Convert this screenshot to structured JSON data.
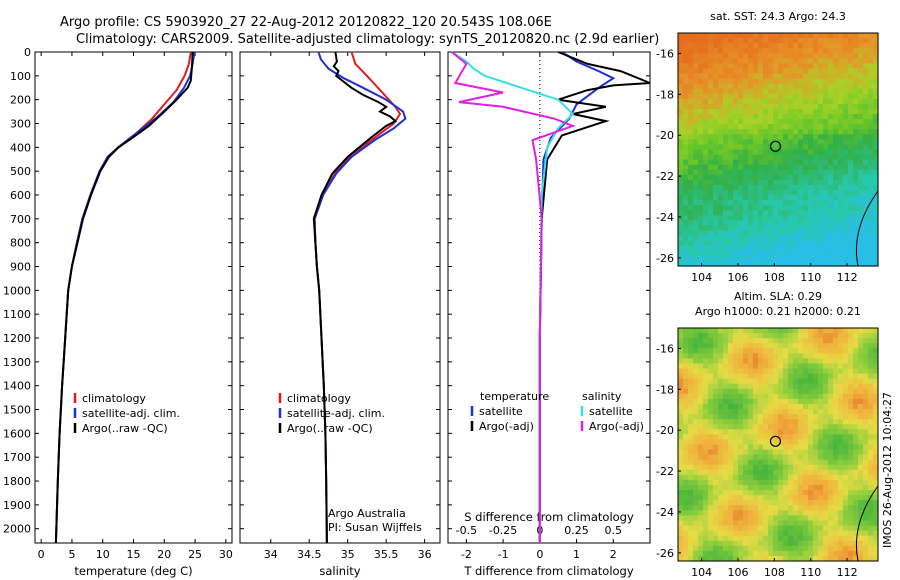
{
  "header": {
    "line1": "Argo profile: CS 5903920_27 22-Aug-2012 20120822_120 20.543S 108.06E",
    "line2": "Climatology: CARS2009. Satellite-adjusted climatology: synTS_20120820.nc (2.9d earlier)"
  },
  "colors": {
    "clim": "#e31a1c",
    "sat": "#1f2fd6",
    "argo": "#000000",
    "sat_s": "#33e0e8",
    "argo_s": "#e020e0"
  },
  "chart_data": [
    {
      "type": "line",
      "name": "temperature-profile",
      "xlabel": "temperature (deg C)",
      "ylim": [
        0,
        2060
      ],
      "xlim": [
        -1,
        31
      ],
      "xticks": [
        0,
        5,
        10,
        15,
        20,
        25,
        30
      ],
      "yticks": [
        0,
        100,
        200,
        300,
        400,
        500,
        600,
        700,
        800,
        900,
        1000,
        1100,
        1200,
        1300,
        1400,
        1500,
        1600,
        1700,
        1800,
        1900,
        2000
      ],
      "legend": {
        "position": "lower-center",
        "entries": [
          "climatology",
          "satellite-adj. clim.",
          "Argo(..raw -QC)"
        ]
      },
      "series": [
        {
          "name": "climatology",
          "color_key": "clim",
          "points": [
            [
              24.3,
              0
            ],
            [
              24,
              50
            ],
            [
              23.3,
              100
            ],
            [
              22,
              160
            ],
            [
              20,
              220
            ],
            [
              18,
              280
            ],
            [
              15.5,
              340
            ],
            [
              12.5,
              400
            ],
            [
              10.8,
              440
            ],
            [
              9.5,
              500
            ],
            [
              8,
              600
            ],
            [
              6.7,
              700
            ],
            [
              5.8,
              800
            ],
            [
              5,
              900
            ],
            [
              4.4,
              1000
            ],
            [
              3.9,
              1200
            ],
            [
              3.4,
              1400
            ],
            [
              3,
              1600
            ],
            [
              2.7,
              1800
            ],
            [
              2.4,
              2060
            ]
          ]
        },
        {
          "name": "satellite-adj. clim.",
          "color_key": "sat",
          "points": [
            [
              24.9,
              0
            ],
            [
              24.6,
              50
            ],
            [
              24.2,
              100
            ],
            [
              23.2,
              150
            ],
            [
              21.5,
              210
            ],
            [
              19,
              270
            ],
            [
              16,
              330
            ],
            [
              13,
              390
            ],
            [
              10.8,
              440
            ],
            [
              9.5,
              500
            ],
            [
              8,
              600
            ],
            [
              6.7,
              700
            ],
            [
              5.8,
              800
            ],
            [
              5,
              900
            ],
            [
              4.4,
              1000
            ],
            [
              3.9,
              1200
            ],
            [
              3.4,
              1400
            ],
            [
              3,
              1600
            ],
            [
              2.7,
              1800
            ],
            [
              2.4,
              2060
            ]
          ]
        },
        {
          "name": "Argo(..raw -QC)",
          "color_key": "argo",
          "points": [
            [
              24.6,
              0
            ],
            [
              24.5,
              60
            ],
            [
              24.3,
              120
            ],
            [
              23.8,
              150
            ],
            [
              22,
              200
            ],
            [
              20,
              250
            ],
            [
              17.5,
              310
            ],
            [
              14.8,
              360
            ],
            [
              12.6,
              400
            ],
            [
              11,
              440
            ],
            [
              9.6,
              500
            ],
            [
              8.1,
              600
            ],
            [
              6.8,
              700
            ],
            [
              5.9,
              800
            ],
            [
              5,
              900
            ],
            [
              4.4,
              1000
            ],
            [
              3.9,
              1200
            ],
            [
              3.4,
              1400
            ],
            [
              3,
              1600
            ],
            [
              2.7,
              1800
            ],
            [
              2.4,
              2060
            ]
          ]
        }
      ]
    },
    {
      "type": "line",
      "name": "salinity-profile",
      "xlabel": "salinity",
      "ylim": [
        0,
        2060
      ],
      "xlim": [
        33.6,
        36.2
      ],
      "xticks": [
        34,
        34.5,
        35,
        35.5,
        36
      ],
      "legend": {
        "position": "lower-center",
        "entries": [
          "climatology",
          "satellite-adj. clim.",
          "Argo(..raw -QC)"
        ]
      },
      "annotation": [
        "Argo Australia",
        "PI: Susan Wijffels"
      ],
      "series": [
        {
          "name": "climatology",
          "color_key": "clim",
          "points": [
            [
              35.05,
              0
            ],
            [
              35.1,
              50
            ],
            [
              35.25,
              100
            ],
            [
              35.45,
              170
            ],
            [
              35.62,
              230
            ],
            [
              35.68,
              260
            ],
            [
              35.6,
              300
            ],
            [
              35.35,
              360
            ],
            [
              35.05,
              430
            ],
            [
              34.85,
              500
            ],
            [
              34.68,
              600
            ],
            [
              34.57,
              700
            ],
            [
              34.58,
              800
            ],
            [
              34.6,
              900
            ],
            [
              34.63,
              1000
            ],
            [
              34.66,
              1200
            ],
            [
              34.69,
              1400
            ],
            [
              34.71,
              1600
            ],
            [
              34.72,
              1800
            ],
            [
              34.73,
              2060
            ]
          ]
        },
        {
          "name": "satellite-adj. clim.",
          "color_key": "sat",
          "points": [
            [
              34.62,
              0
            ],
            [
              34.65,
              30
            ],
            [
              34.75,
              70
            ],
            [
              34.95,
              110
            ],
            [
              35.2,
              150
            ],
            [
              35.5,
              200
            ],
            [
              35.72,
              250
            ],
            [
              35.75,
              280
            ],
            [
              35.6,
              320
            ],
            [
              35.35,
              370
            ],
            [
              35.05,
              440
            ],
            [
              34.85,
              510
            ],
            [
              34.68,
              600
            ],
            [
              34.57,
              700
            ],
            [
              34.58,
              800
            ],
            [
              34.6,
              900
            ],
            [
              34.63,
              1000
            ],
            [
              34.66,
              1200
            ],
            [
              34.69,
              1400
            ],
            [
              34.71,
              1600
            ],
            [
              34.72,
              1800
            ],
            [
              34.73,
              2060
            ]
          ]
        },
        {
          "name": "Argo(..raw -QC)",
          "color_key": "argo",
          "points": [
            [
              34.84,
              0
            ],
            [
              34.86,
              40
            ],
            [
              34.82,
              60
            ],
            [
              34.88,
              80
            ],
            [
              34.85,
              100
            ],
            [
              34.93,
              120
            ],
            [
              35.05,
              150
            ],
            [
              35.2,
              180
            ],
            [
              35.4,
              210
            ],
            [
              35.5,
              230
            ],
            [
              35.42,
              250
            ],
            [
              35.55,
              270
            ],
            [
              35.62,
              290
            ],
            [
              35.5,
              310
            ],
            [
              35.3,
              360
            ],
            [
              35.0,
              440
            ],
            [
              34.8,
              510
            ],
            [
              34.66,
              600
            ],
            [
              34.56,
              700
            ],
            [
              34.58,
              800
            ],
            [
              34.6,
              900
            ],
            [
              34.63,
              1000
            ],
            [
              34.66,
              1200
            ],
            [
              34.69,
              1400
            ],
            [
              34.71,
              1600
            ],
            [
              34.72,
              1800
            ],
            [
              34.73,
              2060
            ]
          ]
        }
      ]
    },
    {
      "type": "line",
      "name": "difference-profile",
      "xlabel": "T difference from climatology",
      "xlabel_top": "S difference from climatology",
      "ylim": [
        0,
        2060
      ],
      "xlim": [
        -2.5,
        3
      ],
      "xticks": [
        -2,
        -1,
        0,
        1,
        2
      ],
      "xticks_s": [
        "-0.5",
        "-0.25",
        "0",
        "0.25",
        "0.5"
      ],
      "xticks_s_pos": [
        -2,
        -1,
        0,
        1,
        2
      ],
      "legend": {
        "position": "lower-center",
        "headers": [
          "temperature",
          "salinity"
        ],
        "entries": [
          "satellite",
          "Argo(-adj)",
          "satellite",
          "Argo(-adj)"
        ]
      },
      "series": [
        {
          "name": "T satellite",
          "color_key": "sat",
          "points": [
            [
              0.6,
              0
            ],
            [
              1.0,
              40
            ],
            [
              1.6,
              80
            ],
            [
              2.0,
              110
            ],
            [
              1.6,
              150
            ],
            [
              1.0,
              220
            ],
            [
              0.8,
              280
            ],
            [
              0.3,
              360
            ],
            [
              0.1,
              450
            ],
            [
              0.05,
              700
            ],
            [
              0,
              1200
            ],
            [
              0,
              2060
            ]
          ]
        },
        {
          "name": "T Argo(-adj)",
          "color_key": "argo",
          "points": [
            [
              0.5,
              0
            ],
            [
              1.3,
              50
            ],
            [
              2.2,
              80
            ],
            [
              3.0,
              130
            ],
            [
              2.0,
              140
            ],
            [
              1.3,
              160
            ],
            [
              0.5,
              200
            ],
            [
              1.8,
              230
            ],
            [
              0.9,
              260
            ],
            [
              1.8,
              290
            ],
            [
              0.6,
              350
            ],
            [
              0.2,
              450
            ],
            [
              0.05,
              700
            ],
            [
              0,
              1200
            ],
            [
              0,
              2060
            ]
          ]
        },
        {
          "name": "S satellite",
          "color_key": "sat_s",
          "points": [
            [
              -2.4,
              0
            ],
            [
              -2.0,
              40
            ],
            [
              -1.8,
              70
            ],
            [
              -1.5,
              100
            ],
            [
              -0.5,
              150
            ],
            [
              0.5,
              200
            ],
            [
              0.9,
              260
            ],
            [
              0.5,
              320
            ],
            [
              0.2,
              400
            ],
            [
              0.05,
              600
            ],
            [
              0,
              1200
            ],
            [
              0,
              2060
            ]
          ]
        },
        {
          "name": "S Argo(-adj)",
          "color_key": "argo_s",
          "points": [
            [
              -2.4,
              0
            ],
            [
              -2.0,
              50
            ],
            [
              -2.3,
              130
            ],
            [
              -1.0,
              170
            ],
            [
              -2.2,
              210
            ],
            [
              -1.0,
              230
            ],
            [
              0.4,
              280
            ],
            [
              0.9,
              310
            ],
            [
              -0.2,
              370
            ],
            [
              -0.1,
              450
            ],
            [
              0.05,
              700
            ],
            [
              0,
              1200
            ],
            [
              0,
              2060
            ]
          ]
        }
      ]
    },
    {
      "type": "heatmap",
      "name": "sst-map",
      "title": "sat. SST: 24.3  Argo: 24.3",
      "xticks": [
        104,
        106,
        108,
        110,
        112
      ],
      "yticks": [
        -16,
        -18,
        -20,
        -22,
        -24,
        -26
      ],
      "xlim": [
        102.7,
        113.7
      ],
      "ylim": [
        -26.4,
        -15
      ],
      "float_position": [
        108.06,
        -20.543
      ]
    },
    {
      "type": "heatmap",
      "name": "sla-map",
      "title": "Altim. SLA: 0.29",
      "subtitle": "Argo h1000: 0.21  h2000: 0.21",
      "xticks": [
        104,
        106,
        108,
        110,
        112
      ],
      "yticks": [
        -16,
        -18,
        -20,
        -22,
        -24,
        -26
      ],
      "xlim": [
        102.7,
        113.7
      ],
      "ylim": [
        -26.4,
        -15
      ],
      "float_position": [
        108.06,
        -20.543
      ]
    }
  ],
  "footer": {
    "stamp": "IMOS 26-Aug-2012 10:04:27"
  }
}
